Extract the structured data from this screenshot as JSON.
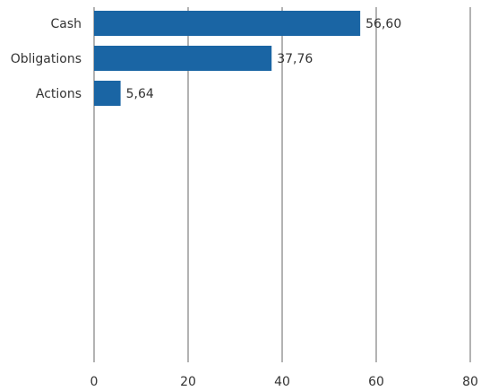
{
  "chart_data": {
    "type": "bar",
    "orientation": "horizontal",
    "categories": [
      "Cash",
      "Obligations",
      "Actions"
    ],
    "values": [
      56.6,
      37.76,
      5.64
    ],
    "value_labels": [
      "56,60",
      "37,76",
      "5,64"
    ],
    "xlim": [
      0,
      80
    ],
    "x_ticks": [
      0,
      20,
      40,
      60,
      80
    ],
    "x_tick_labels": [
      "0",
      "20",
      "40",
      "60",
      "80"
    ],
    "title": "",
    "xlabel": "",
    "ylabel": "",
    "grid": "vertical",
    "legend": "none",
    "bar_color": "#1a65a4",
    "grid_color": "#b3b3b3",
    "text_color": "#333333"
  }
}
